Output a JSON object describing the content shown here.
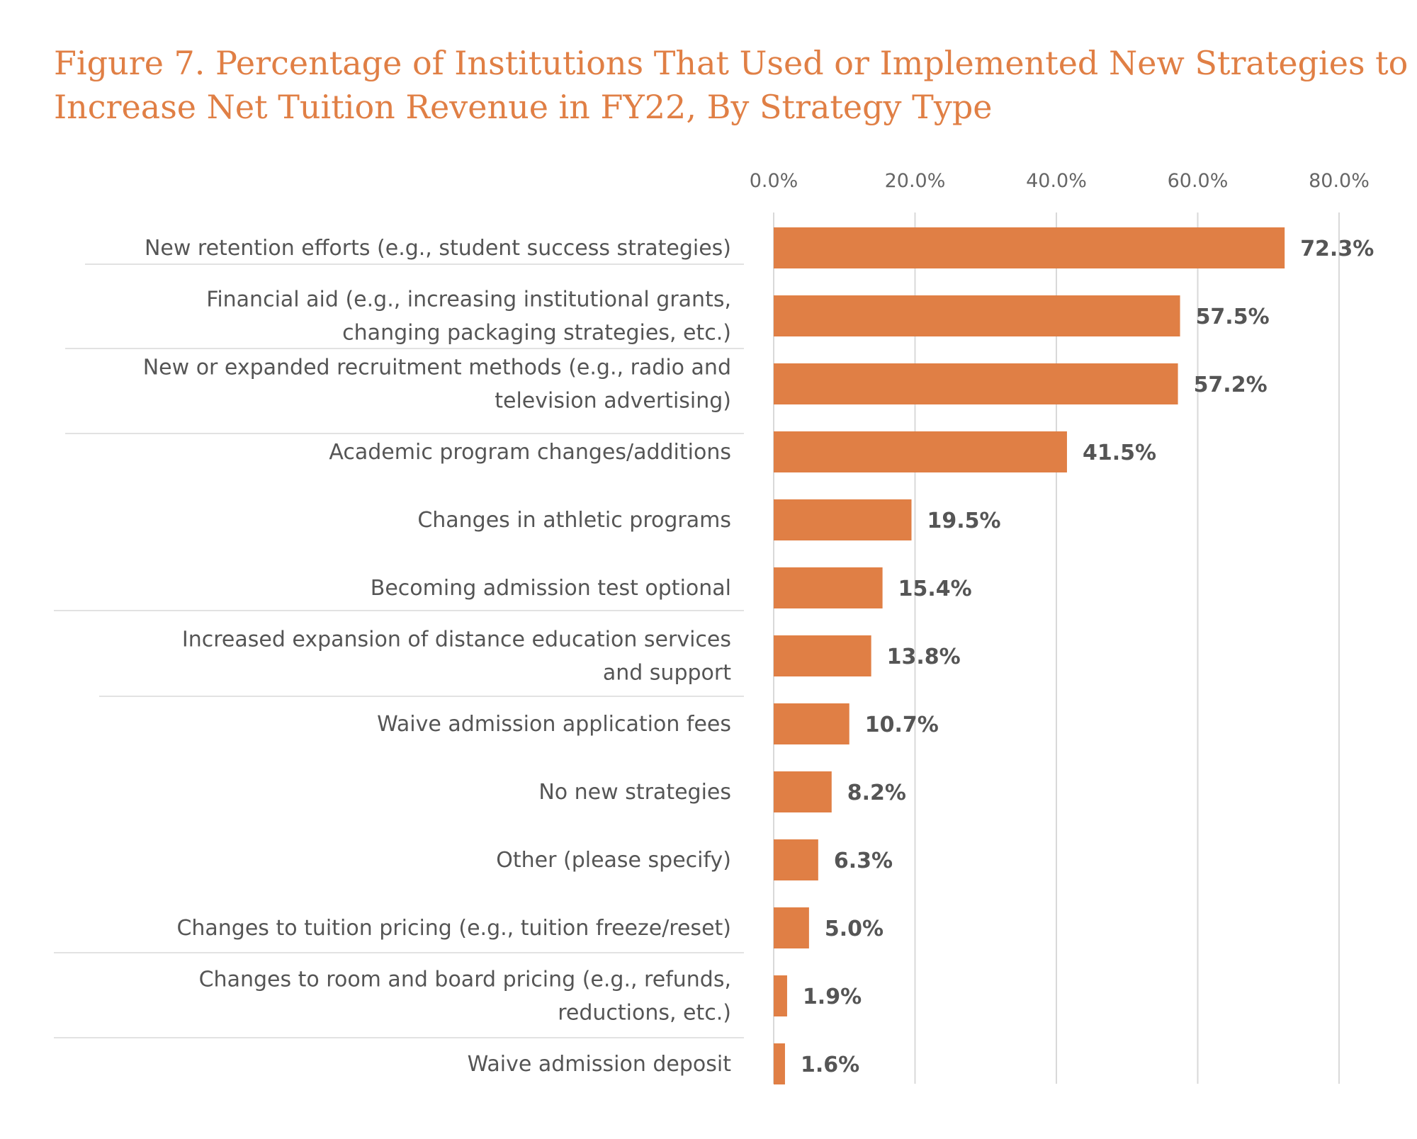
{
  "title_lines": [
    "Figure 7. Percentage of Institutions That Used or Implemented New Strategies to",
    "Increase Net Tuition Revenue in FY22, By Strategy Type"
  ],
  "colors": {
    "bar": "#E07F45",
    "title": "#E07F45",
    "grid": "#D9D9D9",
    "text": "#555555"
  },
  "chart_data": {
    "type": "bar",
    "orientation": "horizontal",
    "title": "Figure 7. Percentage of Institutions That Used or Implemented New Strategies to Increase Net Tuition Revenue in FY22, By Strategy Type",
    "xlim": [
      0,
      80
    ],
    "axis_position": "top",
    "grid": true,
    "ticks": [
      "0.0%",
      "20.0%",
      "40.0%",
      "60.0%",
      "80.0%"
    ],
    "tick_values": [
      0,
      20,
      40,
      60,
      80
    ],
    "categories": [
      [
        "New retention efforts (e.g., student success strategies)"
      ],
      [
        "Financial aid (e.g., increasing institutional grants,",
        "changing packaging strategies, etc.)"
      ],
      [
        "New or expanded recruitment methods (e.g., radio and",
        "television advertising)"
      ],
      [
        "Academic program changes/additions"
      ],
      [
        "Changes in athletic programs"
      ],
      [
        "Becoming admission test optional"
      ],
      [
        "Increased expansion of distance education services",
        "and support"
      ],
      [
        "Waive admission application fees"
      ],
      [
        "No new strategies"
      ],
      [
        "Other (please specify)"
      ],
      [
        "Changes to tuition pricing (e.g., tuition freeze/reset)"
      ],
      [
        "Changes to room and board pricing (e.g., refunds,",
        "reductions, etc.)"
      ],
      [
        "Waive admission deposit"
      ]
    ],
    "values": [
      72.3,
      57.5,
      57.2,
      41.5,
      19.5,
      15.4,
      13.8,
      10.7,
      8.2,
      6.3,
      5.0,
      1.9,
      1.6
    ],
    "value_labels": [
      "72.3%",
      "57.5%",
      "57.2%",
      "41.5%",
      "19.5%",
      "15.4%",
      "13.8%",
      "10.7%",
      "8.2%",
      "6.3%",
      "5.0%",
      "1.9%",
      "1.6%"
    ]
  }
}
